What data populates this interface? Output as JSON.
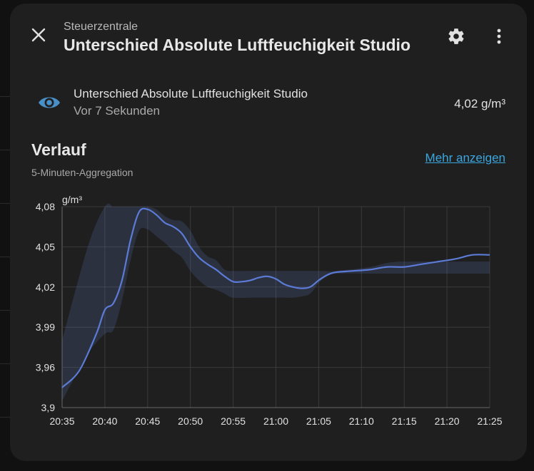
{
  "dialog": {
    "subtitle": "Steuerzentrale",
    "title": "Unterschied Absolute Luftfeuchigkeit Studio",
    "icons": {
      "close": "close-icon",
      "settings": "gear-icon",
      "more": "more-vertical-icon"
    }
  },
  "entity": {
    "icon": "eye-icon",
    "icon_color": "#4a90c8",
    "name": "Unterschied Absolute Luftfeuchigkeit Studio",
    "last_changed": "Vor 7 Sekunden",
    "state": "4,02 g/m³"
  },
  "history": {
    "title": "Verlauf",
    "aggregation": "5-Minuten-Aggregation",
    "show_more": "Mehr anzeigen"
  },
  "chart_data": {
    "type": "line",
    "unit": "g/m³",
    "x": [
      "20:35",
      "20:40",
      "20:45",
      "20:50",
      "20:55",
      "21:00",
      "21:05",
      "21:10",
      "21:15",
      "21:20",
      "21:25"
    ],
    "xlim": [
      0,
      50
    ],
    "ylim": [
      3.9,
      4.08
    ],
    "y_ticks": [
      "3,9",
      "3,96",
      "3,99",
      "4,02",
      "4,05",
      "4,08"
    ],
    "grid": true,
    "series": [
      {
        "values": [
          [
            0,
            3.93
          ],
          [
            2,
            3.955
          ],
          [
            4,
            3.985
          ],
          [
            5,
            4.003
          ],
          [
            6,
            4.008
          ],
          [
            7,
            4.025
          ],
          [
            8,
            4.055
          ],
          [
            9,
            4.076
          ],
          [
            10,
            4.078
          ],
          [
            11,
            4.074
          ],
          [
            12,
            4.068
          ],
          [
            13,
            4.065
          ],
          [
            14,
            4.06
          ],
          [
            15,
            4.05
          ],
          [
            16,
            4.042
          ],
          [
            17,
            4.037
          ],
          [
            18,
            4.033
          ],
          [
            19,
            4.028
          ],
          [
            20,
            4.024
          ],
          [
            21,
            4.024
          ],
          [
            22,
            4.025
          ],
          [
            23,
            4.027
          ],
          [
            24,
            4.028
          ],
          [
            25,
            4.026
          ],
          [
            26,
            4.022
          ],
          [
            27,
            4.02
          ],
          [
            28,
            4.019
          ],
          [
            29,
            4.02
          ],
          [
            30,
            4.025
          ],
          [
            31,
            4.029
          ],
          [
            32,
            4.031
          ],
          [
            34,
            4.032
          ],
          [
            36,
            4.033
          ],
          [
            38,
            4.035
          ],
          [
            40,
            4.035
          ],
          [
            42,
            4.037
          ],
          [
            44,
            4.039
          ],
          [
            46,
            4.041
          ],
          [
            48,
            4.044
          ],
          [
            50,
            4.044
          ]
        ],
        "min": [
          [
            0,
            3.91
          ],
          [
            3,
            3.97
          ],
          [
            5,
            3.985
          ],
          [
            6,
            3.988
          ],
          [
            7,
            4.01
          ],
          [
            8,
            4.04
          ],
          [
            9,
            4.062
          ],
          [
            10,
            4.063
          ],
          [
            11,
            4.058
          ],
          [
            12,
            4.053
          ],
          [
            13,
            4.047
          ],
          [
            14,
            4.042
          ],
          [
            15,
            4.032
          ],
          [
            16,
            4.025
          ],
          [
            17,
            4.02
          ],
          [
            18,
            4.018
          ],
          [
            19,
            4.015
          ],
          [
            20,
            4.012
          ],
          [
            22,
            4.012
          ],
          [
            24,
            4.012
          ],
          [
            26,
            4.012
          ],
          [
            27,
            4.012
          ],
          [
            28,
            4.013
          ],
          [
            29,
            4.015
          ],
          [
            30,
            4.023
          ],
          [
            31,
            4.028
          ],
          [
            32,
            4.03
          ],
          [
            36,
            4.03
          ],
          [
            40,
            4.03
          ],
          [
            45,
            4.03
          ],
          [
            50,
            4.03
          ]
        ],
        "max": [
          [
            0,
            3.98
          ],
          [
            3,
            4.05
          ],
          [
            5,
            4.08
          ],
          [
            6,
            4.08
          ],
          [
            7,
            4.08
          ],
          [
            8,
            4.08
          ],
          [
            9,
            4.08
          ],
          [
            10,
            4.08
          ],
          [
            11,
            4.078
          ],
          [
            12,
            4.073
          ],
          [
            13,
            4.07
          ],
          [
            14,
            4.069
          ],
          [
            15,
            4.062
          ],
          [
            16,
            4.05
          ],
          [
            17,
            4.043
          ],
          [
            18,
            4.04
          ],
          [
            19,
            4.033
          ],
          [
            20,
            4.032
          ],
          [
            22,
            4.032
          ],
          [
            24,
            4.032
          ],
          [
            26,
            4.032
          ],
          [
            28,
            4.032
          ],
          [
            30,
            4.032
          ],
          [
            32,
            4.032
          ],
          [
            36,
            4.035
          ],
          [
            38,
            4.038
          ],
          [
            40,
            4.039
          ],
          [
            45,
            4.039
          ],
          [
            50,
            4.039
          ]
        ]
      }
    ]
  }
}
